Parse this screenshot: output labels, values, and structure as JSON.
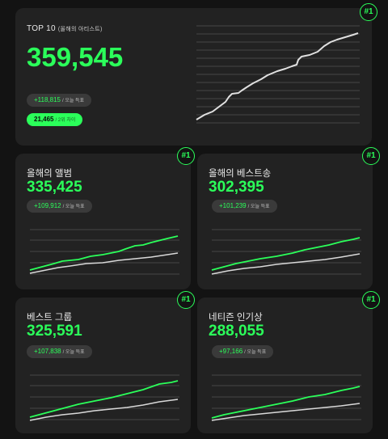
{
  "top10": {
    "title": "TOP 10",
    "subtitle": "(올해의 아티스트)",
    "value": "359,545",
    "delta": "+118,815",
    "delta_label": "/ 오늘 득표",
    "rank_value": "21,465",
    "rank_label": "/ 2위 차이",
    "badge": "#1"
  },
  "cards": [
    {
      "title": "올해의 앨범",
      "value": "335,425",
      "delta": "+109,912",
      "delta_label": "/ 오늘 득표",
      "badge": "#1"
    },
    {
      "title": "올해의 베스트송",
      "value": "302,395",
      "delta": "+101,239",
      "delta_label": "/ 오늘 득표",
      "badge": "#1"
    },
    {
      "title": "베스트 그룹",
      "value": "325,591",
      "delta": "+107,838",
      "delta_label": "/ 오늘 득표",
      "badge": "#1"
    },
    {
      "title": "네티즌 인기상",
      "value": "288,055",
      "delta": "+97,166",
      "delta_label": "/ 오늘 득표",
      "badge": "#1"
    }
  ],
  "colors": {
    "accent": "#2bff5a",
    "card": "#222222",
    "background": "#131313",
    "secondary_line": "#d8d8d8",
    "grid": "#555555"
  }
}
